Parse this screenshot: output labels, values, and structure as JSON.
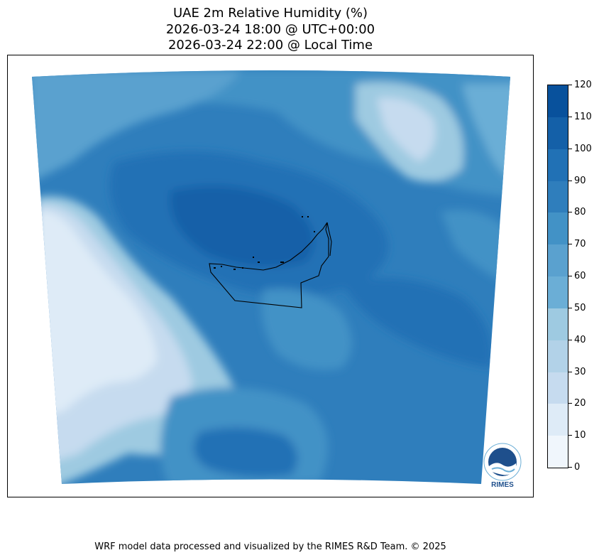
{
  "title": {
    "line1": "UAE 2m Relative Humidity (%)",
    "line2": "2026-03-24 18:00 @ UTC+00:00",
    "line3": "2026-03-24 22:00 @ Local Time"
  },
  "colorbar": {
    "ticks": [
      "0",
      "10",
      "20",
      "30",
      "40",
      "50",
      "60",
      "70",
      "80",
      "90",
      "100",
      "110",
      "120"
    ],
    "colors": [
      "#f0f6fc",
      "#deebf7",
      "#c6dbef",
      "#b2d2e8",
      "#9ecae1",
      "#6baed6",
      "#5aa1cf",
      "#4292c6",
      "#2f7ebc",
      "#2171b5",
      "#1460a8",
      "#08519c",
      "#08306b"
    ]
  },
  "logo": {
    "name": "RIMES"
  },
  "footer": "WRF model data processed and visualized by the RIMES R&D Team. © 2025"
}
